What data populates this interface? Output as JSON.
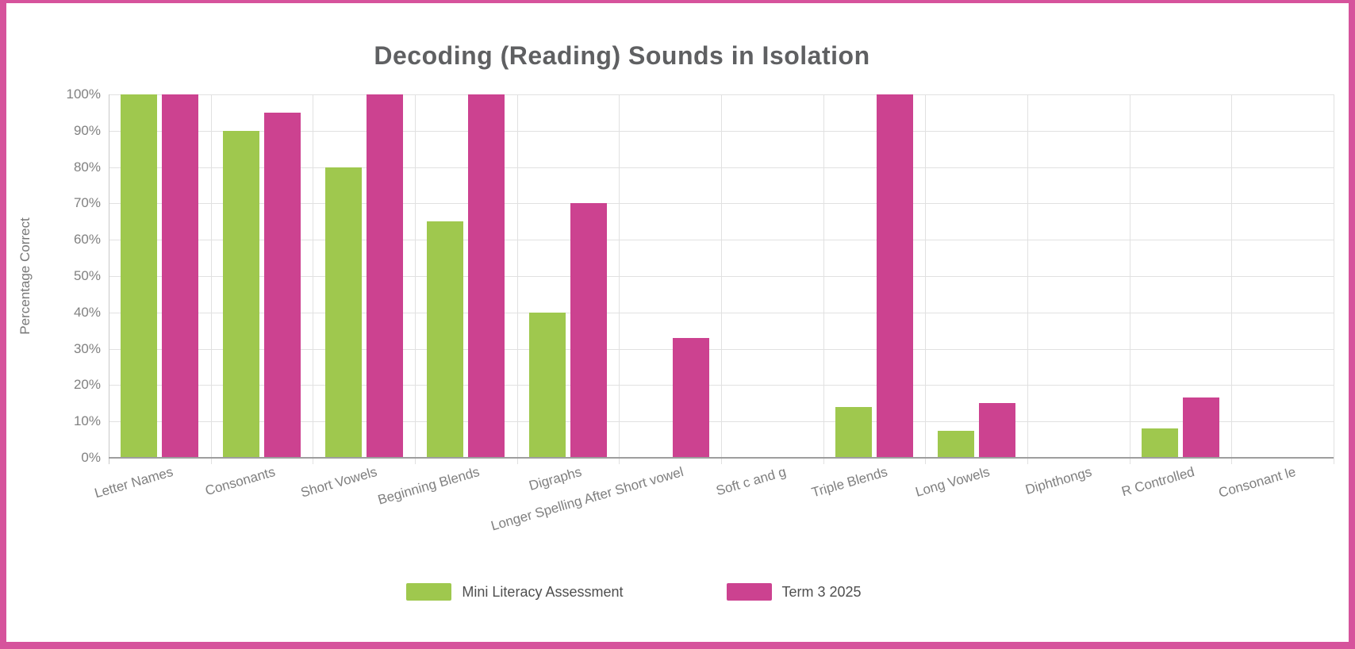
{
  "frame": {
    "border_color": "#d6539c",
    "background": "#ffffff"
  },
  "colors": {
    "series_green": "#9fc84e",
    "series_pink": "#cc4290",
    "gridline": "#e1e1e1",
    "axis_line": "#9e9e9e",
    "tick_text": "#818181",
    "category_text": "#7f7f7f",
    "title_text": "#5f6062",
    "legend_text": "#4f4f4f",
    "y_axis_title_text": "#777777"
  },
  "chart_data": {
    "type": "bar",
    "title": "Decoding (Reading) Sounds in Isolation",
    "xlabel": "",
    "ylabel": "Percentage Correct",
    "ylim": [
      0,
      100
    ],
    "grid": true,
    "legend_position": "bottom-center",
    "categories": [
      "Letter Names",
      "Consonants",
      "Short Vowels",
      "Beginning Blends",
      "Digraphs",
      "Longer Spelling After Short vowel",
      "Soft c and g",
      "Triple Blends",
      "Long Vowels",
      "Diphthongs",
      "R Controlled",
      "Consonant le"
    ],
    "series": [
      {
        "name": "Mini Literacy Assessment",
        "color_key": "series_green",
        "values": [
          100,
          90,
          80,
          65,
          40,
          0,
          0,
          14,
          7.5,
          0,
          8,
          0
        ]
      },
      {
        "name": "Term 3 2025",
        "color_key": "series_pink",
        "values": [
          100,
          95,
          100,
          100,
          70,
          33,
          0,
          100,
          15,
          0,
          16.5,
          0
        ]
      }
    ],
    "yticks": [
      {
        "value": 0,
        "label": "0%"
      },
      {
        "value": 10,
        "label": "10%"
      },
      {
        "value": 20,
        "label": "20%"
      },
      {
        "value": 30,
        "label": "30%"
      },
      {
        "value": 40,
        "label": "40%"
      },
      {
        "value": 50,
        "label": "50%"
      },
      {
        "value": 60,
        "label": "60%"
      },
      {
        "value": 70,
        "label": "70%"
      },
      {
        "value": 80,
        "label": "80%"
      },
      {
        "value": 90,
        "label": "90%"
      },
      {
        "value": 100,
        "label": "100%"
      }
    ]
  }
}
